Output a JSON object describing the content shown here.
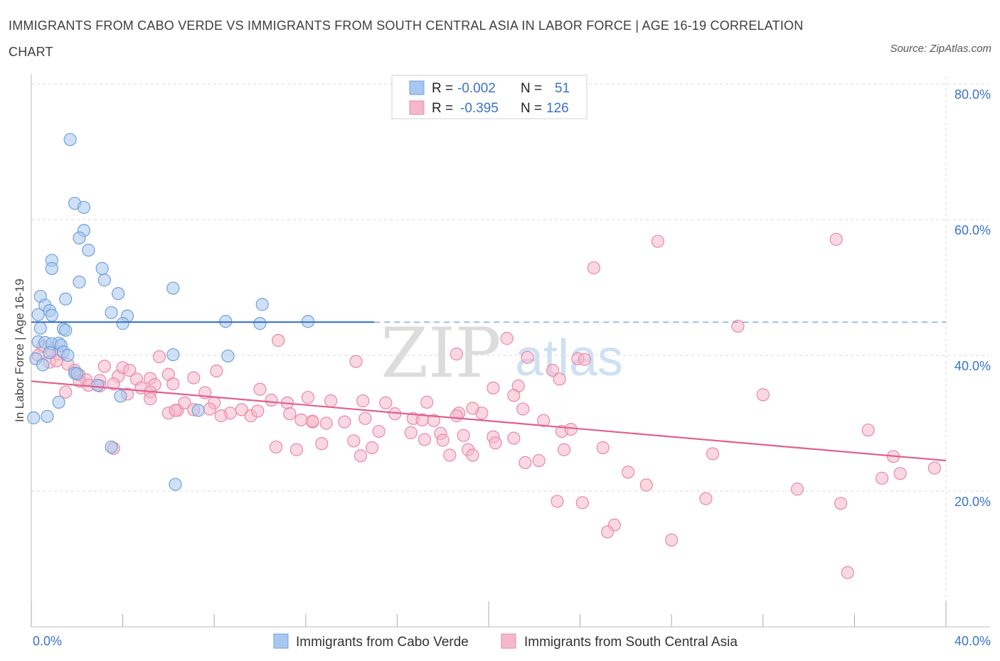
{
  "title": "IMMIGRANTS FROM CABO VERDE VS IMMIGRANTS FROM SOUTH CENTRAL ASIA IN LABOR FORCE | AGE 16-19 CORRELATION CHART",
  "source": "Source: ZipAtlas.com",
  "watermark": {
    "zip": "ZIP",
    "atlas": "atlas"
  },
  "colors": {
    "blue_fill": "#a9c8f0",
    "blue_stroke": "#6f9fd8",
    "blue_line": "#3a73c8",
    "pink_fill": "#f5b8cb",
    "pink_stroke": "#e888a8",
    "pink_line": "#e0608e",
    "axis_text": "#3a73c8",
    "grid": "#d8d8d8"
  },
  "legend_top": [
    {
      "r_label": "R =",
      "r_value": "-0.002",
      "n_label": "N =",
      "n_value": "51",
      "series": "blue"
    },
    {
      "r_label": "R =",
      "r_value": "-0.395",
      "n_label": "N =",
      "n_value": "126",
      "series": "pink"
    }
  ],
  "chart_data": {
    "type": "scatter",
    "title": "IMMIGRANTS FROM CABO VERDE VS IMMIGRANTS FROM SOUTH CENTRAL ASIA IN LABOR FORCE | AGE 16-19 CORRELATION CHART",
    "xlabel": "",
    "ylabel": "In Labor Force | Age 16-19",
    "xlim": [
      0,
      40
    ],
    "ylim": [
      0,
      80
    ],
    "x_tick_labels": [
      "0.0%",
      "40.0%"
    ],
    "y_ticks": [
      20,
      40,
      60,
      80
    ],
    "y_tick_labels": [
      "20.0%",
      "40.0%",
      "60.0%",
      "80.0%"
    ],
    "series": [
      {
        "name": "Immigrants from Cabo Verde",
        "color": "blue",
        "r": -0.002,
        "n": 51,
        "trend": {
          "x0": 0,
          "y0": 44.9,
          "x1": 15,
          "y1": 44.9,
          "dash_to": 40
        },
        "points": [
          [
            1.7,
            71.8
          ],
          [
            1.9,
            62.4
          ],
          [
            2.3,
            61.8
          ],
          [
            2.3,
            58.4
          ],
          [
            2.1,
            57.3
          ],
          [
            2.5,
            55.5
          ],
          [
            0.9,
            54.0
          ],
          [
            0.9,
            52.8
          ],
          [
            3.1,
            52.8
          ],
          [
            2.1,
            50.8
          ],
          [
            3.2,
            51.1
          ],
          [
            6.2,
            49.9
          ],
          [
            3.8,
            49.1
          ],
          [
            0.4,
            48.7
          ],
          [
            1.5,
            48.3
          ],
          [
            0.6,
            47.4
          ],
          [
            0.8,
            46.6
          ],
          [
            3.5,
            46.3
          ],
          [
            0.3,
            46.0
          ],
          [
            0.9,
            45.9
          ],
          [
            4.2,
            45.8
          ],
          [
            4.0,
            44.7
          ],
          [
            8.5,
            45.0
          ],
          [
            10.1,
            47.5
          ],
          [
            12.1,
            45.0
          ],
          [
            10.0,
            44.7
          ],
          [
            1.4,
            43.9
          ],
          [
            1.5,
            43.7
          ],
          [
            0.4,
            44.0
          ],
          [
            0.3,
            42.0
          ],
          [
            0.6,
            41.9
          ],
          [
            0.9,
            41.7
          ],
          [
            1.2,
            41.8
          ],
          [
            1.3,
            41.5
          ],
          [
            0.8,
            40.4
          ],
          [
            1.4,
            40.5
          ],
          [
            1.6,
            40.0
          ],
          [
            0.2,
            39.5
          ],
          [
            0.5,
            38.6
          ],
          [
            6.2,
            40.1
          ],
          [
            8.6,
            39.9
          ],
          [
            1.9,
            37.4
          ],
          [
            2.0,
            37.3
          ],
          [
            2.9,
            35.6
          ],
          [
            3.9,
            34.0
          ],
          [
            1.2,
            33.1
          ],
          [
            0.7,
            31.0
          ],
          [
            7.3,
            31.9
          ],
          [
            0.1,
            30.8
          ],
          [
            3.5,
            26.5
          ],
          [
            6.3,
            21.0
          ]
        ]
      },
      {
        "name": "Immigrants from South Central Asia",
        "color": "pink",
        "r": -0.395,
        "n": 126,
        "trend": {
          "x0": 0,
          "y0": 36.2,
          "x1": 40,
          "y1": 24.5
        },
        "points": [
          [
            27.4,
            56.8
          ],
          [
            35.2,
            57.1
          ],
          [
            24.6,
            52.9
          ],
          [
            30.9,
            44.3
          ],
          [
            10.8,
            42.2
          ],
          [
            20.8,
            42.5
          ],
          [
            5.6,
            39.8
          ],
          [
            14.2,
            39.1
          ],
          [
            18.6,
            40.2
          ],
          [
            21.7,
            39.7
          ],
          [
            23.9,
            39.5
          ],
          [
            24.2,
            39.4
          ],
          [
            0.5,
            41.3
          ],
          [
            0.9,
            40.6
          ],
          [
            1.2,
            40.2
          ],
          [
            0.3,
            40.0
          ],
          [
            0.8,
            39.0
          ],
          [
            1.1,
            39.2
          ],
          [
            1.6,
            38.7
          ],
          [
            1.9,
            37.8
          ],
          [
            2.1,
            37.1
          ],
          [
            2.4,
            36.4
          ],
          [
            3.0,
            36.3
          ],
          [
            3.8,
            36.9
          ],
          [
            4.0,
            38.2
          ],
          [
            4.3,
            37.8
          ],
          [
            4.6,
            36.5
          ],
          [
            5.2,
            36.6
          ],
          [
            6.0,
            37.2
          ],
          [
            7.1,
            36.7
          ],
          [
            8.1,
            37.7
          ],
          [
            3.2,
            38.4
          ],
          [
            5.4,
            35.7
          ],
          [
            6.2,
            35.8
          ],
          [
            1.5,
            34.6
          ],
          [
            2.1,
            36.2
          ],
          [
            2.5,
            35.6
          ],
          [
            3.6,
            35.8
          ],
          [
            4.8,
            35.2
          ],
          [
            5.2,
            34.6
          ],
          [
            3.0,
            35.5
          ],
          [
            4.2,
            34.3
          ],
          [
            5.2,
            33.6
          ],
          [
            6.4,
            31.9
          ],
          [
            6.7,
            33.0
          ],
          [
            7.1,
            32.0
          ],
          [
            7.6,
            34.5
          ],
          [
            8.0,
            33.0
          ],
          [
            8.7,
            31.5
          ],
          [
            9.2,
            32.0
          ],
          [
            10.0,
            35.0
          ],
          [
            10.5,
            33.4
          ],
          [
            11.2,
            33.0
          ],
          [
            12.1,
            33.8
          ],
          [
            6.0,
            31.5
          ],
          [
            6.3,
            31.9
          ],
          [
            7.8,
            32.1
          ],
          [
            8.3,
            31.1
          ],
          [
            9.6,
            31.1
          ],
          [
            9.9,
            31.8
          ],
          [
            11.3,
            31.4
          ],
          [
            12.3,
            30.2
          ],
          [
            13.1,
            33.3
          ],
          [
            14.5,
            33.3
          ],
          [
            15.5,
            33.0
          ],
          [
            15.9,
            31.4
          ],
          [
            16.7,
            30.7
          ],
          [
            17.1,
            30.5
          ],
          [
            18.7,
            31.5
          ],
          [
            19.7,
            31.5
          ],
          [
            11.8,
            30.5
          ],
          [
            12.3,
            30.3
          ],
          [
            12.9,
            30.0
          ],
          [
            13.7,
            30.2
          ],
          [
            14.6,
            30.7
          ],
          [
            15.2,
            28.8
          ],
          [
            16.6,
            28.6
          ],
          [
            17.6,
            30.4
          ],
          [
            17.9,
            28.5
          ],
          [
            18.9,
            28.2
          ],
          [
            20.2,
            28.0
          ],
          [
            21.1,
            27.8
          ],
          [
            22.4,
            30.4
          ],
          [
            23.2,
            28.8
          ],
          [
            23.6,
            29.1
          ],
          [
            21.5,
            32.1
          ],
          [
            21.3,
            35.5
          ],
          [
            22.8,
            37.8
          ],
          [
            23.1,
            36.5
          ],
          [
            20.2,
            35.2
          ],
          [
            21.1,
            34.1
          ],
          [
            10.7,
            26.5
          ],
          [
            11.6,
            26.1
          ],
          [
            12.7,
            27.0
          ],
          [
            14.1,
            27.4
          ],
          [
            14.4,
            25.2
          ],
          [
            14.9,
            26.4
          ],
          [
            17.2,
            27.6
          ],
          [
            18.0,
            27.5
          ],
          [
            18.3,
            25.3
          ],
          [
            19.1,
            26.1
          ],
          [
            19.3,
            25.3
          ],
          [
            17.3,
            33.1
          ],
          [
            18.6,
            31.1
          ],
          [
            19.3,
            32.2
          ],
          [
            20.3,
            27.1
          ],
          [
            21.6,
            24.2
          ],
          [
            22.2,
            24.5
          ],
          [
            23.3,
            26.1
          ],
          [
            25.0,
            26.4
          ],
          [
            26.1,
            22.8
          ],
          [
            26.9,
            20.9
          ],
          [
            29.8,
            25.5
          ],
          [
            29.5,
            18.9
          ],
          [
            32.0,
            34.2
          ],
          [
            33.5,
            20.3
          ],
          [
            35.4,
            18.2
          ],
          [
            36.6,
            29.0
          ],
          [
            37.2,
            21.9
          ],
          [
            37.7,
            25.1
          ],
          [
            38.0,
            22.6
          ],
          [
            39.5,
            23.4
          ],
          [
            25.5,
            15.0
          ],
          [
            23.0,
            18.5
          ],
          [
            24.1,
            18.3
          ],
          [
            28.0,
            12.8
          ],
          [
            25.2,
            14.0
          ],
          [
            35.7,
            8.0
          ],
          [
            3.6,
            26.3
          ]
        ]
      }
    ]
  },
  "legend_bottom": [
    {
      "label": "Immigrants from Cabo Verde",
      "series": "blue"
    },
    {
      "label": "Immigrants from South Central Asia",
      "series": "pink"
    }
  ]
}
